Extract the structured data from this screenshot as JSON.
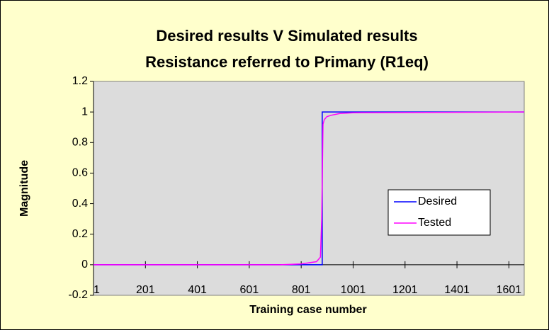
{
  "chart_data": {
    "type": "line",
    "title": "Desired results V Simulated results",
    "subtitle": "Resistance referred to Primany (R1eq)",
    "x_label": "Training case number",
    "y_label": "Magnitude",
    "xlim": [
      1,
      1660
    ],
    "xticks": [
      1,
      201,
      401,
      601,
      801,
      1001,
      1201,
      1401,
      1601
    ],
    "ylim": [
      -0.2,
      1.2
    ],
    "yticks": [
      -0.2,
      0,
      0.2,
      0.4,
      0.6,
      0.8,
      1,
      1.2
    ],
    "legend": "right",
    "series": [
      {
        "name": "Desired",
        "color": "#0000ff",
        "x": [
          1,
          882,
          882,
          1660
        ],
        "values": [
          0,
          0,
          1,
          1
        ]
      },
      {
        "name": "Tested",
        "color": "#ff00ff",
        "x": [
          1,
          720,
          800,
          860,
          875,
          880,
          885,
          890,
          900,
          920,
          950,
          1000,
          1660
        ],
        "values": [
          0,
          0,
          0.005,
          0.02,
          0.05,
          0.3,
          0.92,
          0.95,
          0.97,
          0.98,
          0.99,
          0.995,
          1
        ]
      }
    ]
  }
}
